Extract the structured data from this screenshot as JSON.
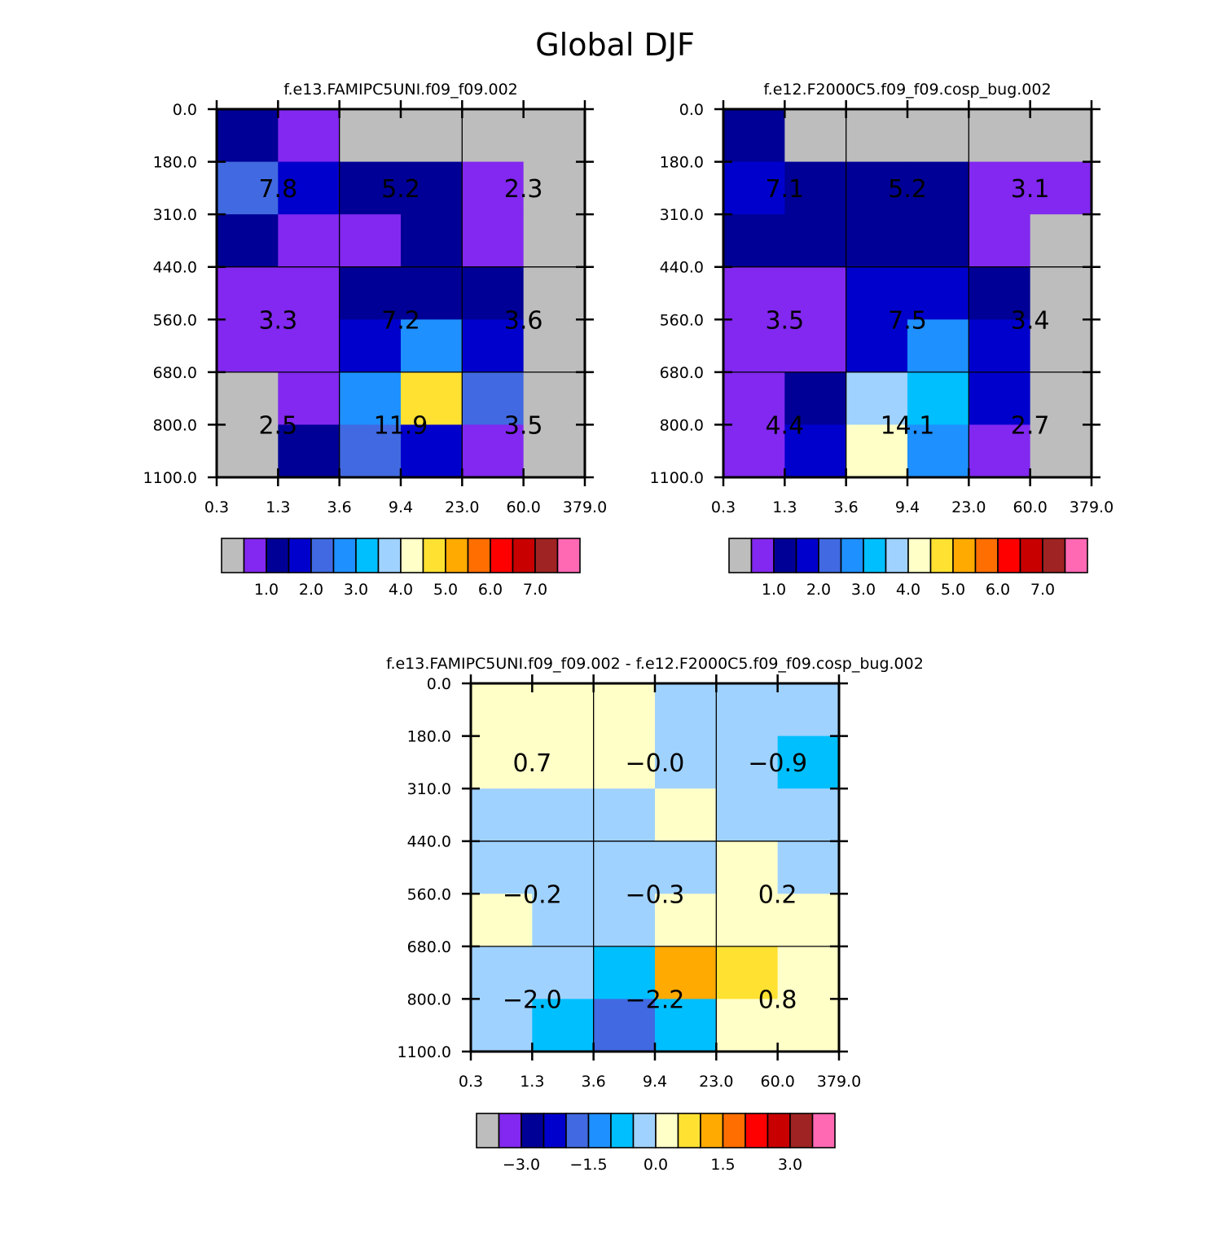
{
  "page_title": "Global DJF",
  "chart_data": [
    {
      "type": "heatmap",
      "title": "f.e13.FAMIPC5UNI.f09_f09.002",
      "x_ticks": [
        "0.3",
        "1.3",
        "3.6",
        "9.4",
        "23.0",
        "60.0",
        "379.0"
      ],
      "y_ticks": [
        "0.0",
        "180.0",
        "310.0",
        "440.0",
        "560.0",
        "680.0",
        "800.0",
        "1100.0"
      ],
      "color_indices": [
        [
          2,
          1,
          0,
          0,
          0,
          0
        ],
        [
          4,
          3,
          2,
          2,
          1,
          0
        ],
        [
          2,
          1,
          1,
          2,
          1,
          0
        ],
        [
          1,
          1,
          2,
          2,
          2,
          0
        ],
        [
          1,
          1,
          3,
          5,
          3,
          0
        ],
        [
          0,
          1,
          5,
          9,
          4,
          0
        ],
        [
          0,
          2,
          4,
          3,
          1,
          0
        ]
      ],
      "group_labels": [
        [
          "7.8",
          "5.2",
          "2.3"
        ],
        [
          "3.3",
          "7.2",
          "3.6"
        ],
        [
          "2.5",
          "11.9",
          "3.5"
        ]
      ],
      "colorbar": {
        "colors": [
          "#bdbdbd",
          "#8228f0",
          "#000096",
          "#0000cd",
          "#4169e1",
          "#1e90ff",
          "#00bfff",
          "#a0d2ff",
          "#ffffc8",
          "#ffe132",
          "#ffaa00",
          "#ff6e00",
          "#ff0000",
          "#c80000",
          "#a02323",
          "#ff69b4"
        ],
        "tick_labels": [
          "1.0",
          "2.0",
          "3.0",
          "4.0",
          "5.0",
          "6.0",
          "7.0"
        ],
        "tick_boundaries": [
          2,
          4,
          6,
          8,
          10,
          12,
          14
        ]
      }
    },
    {
      "type": "heatmap",
      "title": "f.e12.F2000C5.f09_f09.cosp_bug.002",
      "x_ticks": [
        "0.3",
        "1.3",
        "3.6",
        "9.4",
        "23.0",
        "60.0",
        "379.0"
      ],
      "y_ticks": [
        "0.0",
        "180.0",
        "310.0",
        "440.0",
        "560.0",
        "680.0",
        "800.0",
        "1100.0"
      ],
      "color_indices": [
        [
          2,
          0,
          0,
          0,
          0,
          0
        ],
        [
          3,
          2,
          2,
          2,
          1,
          1
        ],
        [
          2,
          2,
          2,
          2,
          1,
          0
        ],
        [
          1,
          1,
          3,
          3,
          2,
          0
        ],
        [
          1,
          1,
          3,
          5,
          3,
          0
        ],
        [
          1,
          2,
          7,
          6,
          3,
          0
        ],
        [
          1,
          3,
          8,
          5,
          1,
          0
        ]
      ],
      "group_labels": [
        [
          "7.1",
          "5.2",
          "3.1"
        ],
        [
          "3.5",
          "7.5",
          "3.4"
        ],
        [
          "4.4",
          "14.1",
          "2.7"
        ]
      ],
      "colorbar": {
        "colors": [
          "#bdbdbd",
          "#8228f0",
          "#000096",
          "#0000cd",
          "#4169e1",
          "#1e90ff",
          "#00bfff",
          "#a0d2ff",
          "#ffffc8",
          "#ffe132",
          "#ffaa00",
          "#ff6e00",
          "#ff0000",
          "#c80000",
          "#a02323",
          "#ff69b4"
        ],
        "tick_labels": [
          "1.0",
          "2.0",
          "3.0",
          "4.0",
          "5.0",
          "6.0",
          "7.0"
        ],
        "tick_boundaries": [
          2,
          4,
          6,
          8,
          10,
          12,
          14
        ]
      }
    },
    {
      "type": "heatmap",
      "title": "f.e13.FAMIPC5UNI.f09_f09.002 - f.e12.F2000C5.f09_f09.cosp_bug.002",
      "x_ticks": [
        "0.3",
        "1.3",
        "3.6",
        "9.4",
        "23.0",
        "60.0",
        "379.0"
      ],
      "y_ticks": [
        "0.0",
        "180.0",
        "310.0",
        "440.0",
        "560.0",
        "680.0",
        "800.0",
        "1100.0"
      ],
      "color_indices": [
        [
          8,
          8,
          8,
          7,
          7,
          7
        ],
        [
          8,
          8,
          8,
          7,
          7,
          6
        ],
        [
          7,
          7,
          7,
          8,
          7,
          7
        ],
        [
          7,
          7,
          7,
          7,
          8,
          7
        ],
        [
          8,
          7,
          7,
          8,
          8,
          8
        ],
        [
          7,
          7,
          6,
          10,
          9,
          8
        ],
        [
          7,
          6,
          4,
          6,
          8,
          8
        ]
      ],
      "group_labels": [
        [
          "0.7",
          "-0.0",
          "-0.9"
        ],
        [
          "-0.2",
          "-0.3",
          "0.2"
        ],
        [
          "-2.0",
          "-2.2",
          "0.8"
        ]
      ],
      "colorbar": {
        "colors": [
          "#bdbdbd",
          "#8228f0",
          "#000096",
          "#0000cd",
          "#4169e1",
          "#1e90ff",
          "#00bfff",
          "#a0d2ff",
          "#ffffc8",
          "#ffe132",
          "#ffaa00",
          "#ff6e00",
          "#ff0000",
          "#c80000",
          "#a02323",
          "#ff69b4"
        ],
        "tick_labels": [
          "-3.0",
          "-1.5",
          "0.0",
          "1.5",
          "3.0"
        ],
        "tick_boundaries": [
          2,
          5,
          8,
          11,
          14
        ]
      }
    }
  ]
}
